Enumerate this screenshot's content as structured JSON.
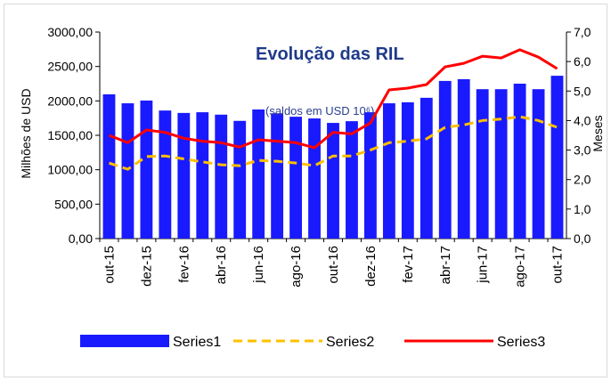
{
  "chart_data": {
    "type": "bar-line",
    "title": "Evolução das RIL",
    "subtitle": "(saldos em USD 10⁶)",
    "y_label": "Milhões de USD",
    "y2_label": "Meses",
    "categories": [
      "out-15",
      null,
      "dez-15",
      null,
      "fev-16",
      null,
      "abr-16",
      null,
      "jun-16",
      null,
      "ago-16",
      null,
      "out-16",
      null,
      "dez-16",
      null,
      "fev-17",
      null,
      "abr-17",
      null,
      "jun-17",
      null,
      "ago-17",
      null,
      "out-17"
    ],
    "series": [
      {
        "name": "Series1",
        "kind": "bar",
        "color": "#1a1aff",
        "values": [
          2095,
          1965,
          2005,
          1860,
          1825,
          1835,
          1800,
          1710,
          1875,
          1820,
          1770,
          1745,
          1680,
          1705,
          1835,
          1965,
          1980,
          2045,
          2290,
          2315,
          2170,
          2170,
          2250,
          2170,
          2365
        ]
      },
      {
        "name": "Series2",
        "kind": "line",
        "dashed": true,
        "axis": "y2",
        "color": "#ffc000",
        "values": [
          2.56,
          2.35,
          2.78,
          2.8,
          2.7,
          2.6,
          2.5,
          2.47,
          2.65,
          2.62,
          2.56,
          2.47,
          2.8,
          2.8,
          3.0,
          3.25,
          3.3,
          3.38,
          3.77,
          3.85,
          4.0,
          4.05,
          4.13,
          4.0,
          3.77
        ]
      },
      {
        "name": "Series3",
        "kind": "line",
        "axis": "y2",
        "color": "#ff0000",
        "values": [
          3.5,
          3.25,
          3.68,
          3.6,
          3.4,
          3.3,
          3.25,
          3.1,
          3.35,
          3.3,
          3.25,
          3.08,
          3.6,
          3.55,
          3.92,
          5.04,
          5.1,
          5.22,
          5.82,
          5.94,
          6.18,
          6.12,
          6.4,
          6.15,
          5.76
        ]
      }
    ],
    "ylim": [
      0,
      3000
    ],
    "yticks": [
      {
        "value": 0,
        "label": "0,00"
      },
      {
        "value": 500,
        "label": "500,00"
      },
      {
        "value": 1000,
        "label": "1000,00"
      },
      {
        "value": 1500,
        "label": "1500,00"
      },
      {
        "value": 2000,
        "label": "2000,00"
      },
      {
        "value": 2500,
        "label": "2500,00"
      },
      {
        "value": 3000,
        "label": "3000,00"
      }
    ],
    "y2lim": [
      0,
      7
    ],
    "y2ticks": [
      {
        "value": 0,
        "label": "0,0"
      },
      {
        "value": 1,
        "label": "1,0"
      },
      {
        "value": 2,
        "label": "2,0"
      },
      {
        "value": 3,
        "label": "3,0"
      },
      {
        "value": 4,
        "label": "4,0"
      },
      {
        "value": 5,
        "label": "5,0"
      },
      {
        "value": 6,
        "label": "6,0"
      },
      {
        "value": 7,
        "label": "7,0"
      }
    ],
    "grid": false,
    "legend": "bottom"
  }
}
